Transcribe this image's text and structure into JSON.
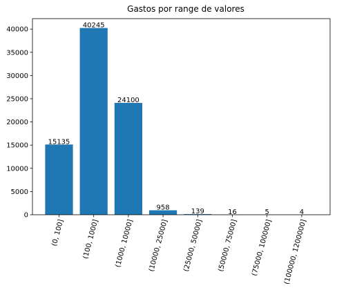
{
  "chart_data": {
    "type": "bar",
    "title": "Gastos por range de valores",
    "xlabel": "",
    "ylabel": "",
    "categories": [
      "(0, 100]",
      "(100, 1000]",
      "(1000, 10000]",
      "(10000, 25000]",
      "(25000, 50000]",
      "(50000, 75000]",
      "(75000, 100000]",
      "(100000, 1200000]"
    ],
    "values": [
      15135,
      40245,
      24100,
      958,
      139,
      16,
      5,
      4
    ],
    "data_labels": [
      "15135",
      "40245",
      "24100",
      "958",
      "139",
      "16",
      "5",
      "4"
    ],
    "y_ticks": [
      0,
      5000,
      10000,
      15000,
      20000,
      25000,
      30000,
      35000,
      40000
    ],
    "ylim": [
      0,
      42257
    ],
    "bar_color": "#1f77b4",
    "grid": false,
    "legend": "none"
  }
}
